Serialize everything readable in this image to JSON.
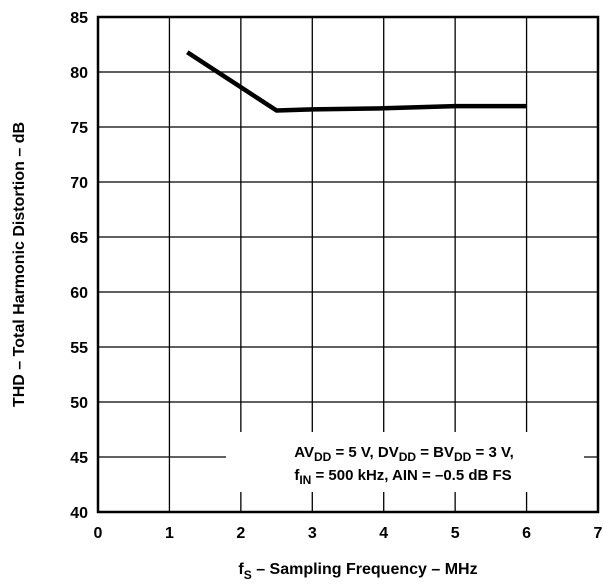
{
  "chart_data": {
    "type": "line",
    "xlabel": {
      "main": "f",
      "sub": "S",
      "rest": " – Sampling Frequency – MHz"
    },
    "ylabel": "THD – Total Harmonic Distortion – dB",
    "xlim": [
      0,
      7
    ],
    "ylim": [
      40,
      85
    ],
    "xticks": [
      0,
      1,
      2,
      3,
      4,
      5,
      6,
      7
    ],
    "yticks": [
      40,
      45,
      50,
      55,
      60,
      65,
      70,
      75,
      80,
      85
    ],
    "grid": true,
    "series": [
      {
        "x": [
          1.25,
          2.5,
          3.0,
          4.0,
          5.0,
          6.0
        ],
        "y": [
          81.8,
          76.5,
          76.6,
          76.7,
          76.9,
          76.9
        ],
        "color": "#000000"
      }
    ],
    "annotation": {
      "line1": [
        {
          "t": "AV"
        },
        {
          "t": "DD",
          "sub": true
        },
        {
          "t": " = 5 V, DV"
        },
        {
          "t": "DD",
          "sub": true
        },
        {
          "t": " = BV"
        },
        {
          "t": "DD",
          "sub": true
        },
        {
          "t": " = 3 V,"
        }
      ],
      "line2": [
        {
          "t": "f"
        },
        {
          "t": "IN",
          "sub": true
        },
        {
          "t": " = 500 kHz, AIN = –0.5 dB FS"
        }
      ]
    }
  }
}
